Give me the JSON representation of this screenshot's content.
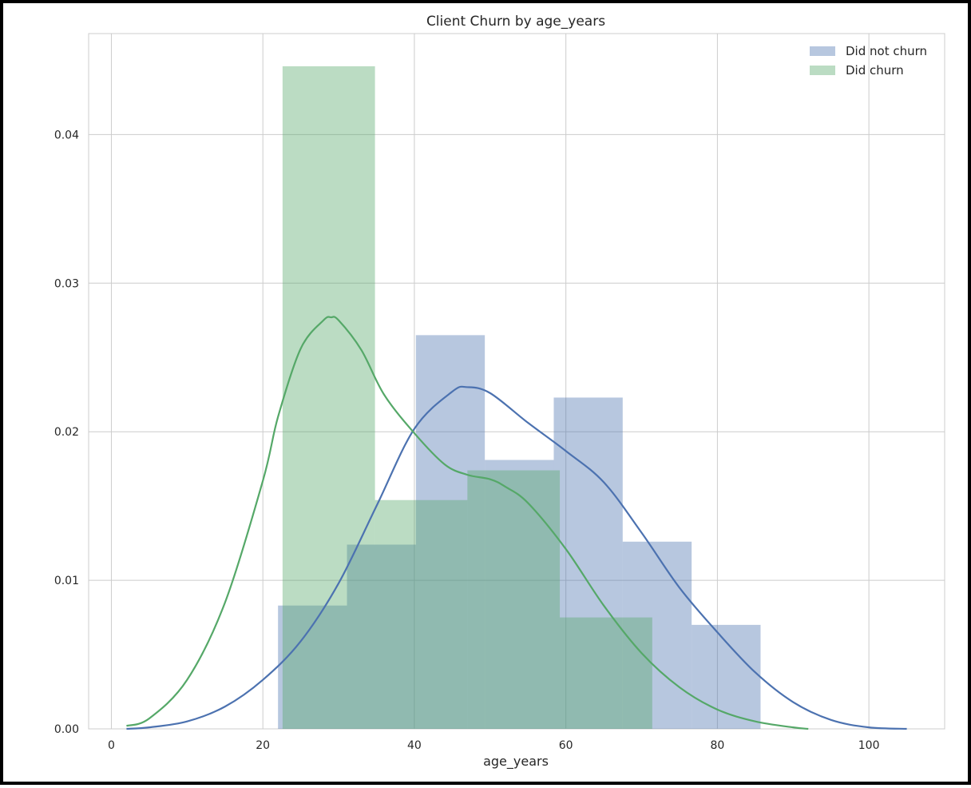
{
  "chart_data": {
    "type": "histogram",
    "title": "Client Churn by age_years",
    "xlabel": "age_years",
    "ylabel": "",
    "xlim": [
      -3,
      110
    ],
    "ylim": [
      0,
      0.0468
    ],
    "xticks": [
      0,
      20,
      40,
      60,
      80,
      100
    ],
    "yticks": [
      0.0,
      0.01,
      0.02,
      0.03,
      0.04
    ],
    "ytick_labels": [
      "0.00",
      "0.01",
      "0.02",
      "0.03",
      "0.04"
    ],
    "grid": true,
    "legend": {
      "placement": "top-right"
    },
    "series": [
      {
        "name": "Did not churn",
        "color": "#4c72b0",
        "hist": {
          "bin_edges": [
            22.0,
            31.1,
            40.2,
            49.3,
            58.4,
            67.5,
            76.6,
            85.7
          ],
          "density": [
            0.0083,
            0.0124,
            0.0265,
            0.0181,
            0.0223,
            0.0126,
            0.007
          ]
        },
        "kde": {
          "x": [
            2,
            5,
            10,
            15,
            20,
            25,
            30,
            35,
            40,
            45,
            47,
            50,
            55,
            60,
            65,
            70,
            75,
            80,
            85,
            90,
            95,
            100,
            105
          ],
          "y": [
            0.0,
            0.0001,
            0.0005,
            0.0015,
            0.0033,
            0.0059,
            0.0098,
            0.015,
            0.0202,
            0.0227,
            0.023,
            0.0226,
            0.0206,
            0.0187,
            0.0166,
            0.0132,
            0.0095,
            0.0065,
            0.0038,
            0.0018,
            0.0006,
            0.0001,
            0.0
          ]
        }
      },
      {
        "name": "Did churn",
        "color": "#55a868",
        "hist": {
          "bin_edges": [
            22.6,
            34.8,
            47.0,
            59.2,
            71.4
          ],
          "density": [
            0.0446,
            0.0154,
            0.0174,
            0.0075
          ]
        },
        "kde": {
          "x": [
            2,
            5,
            10,
            15,
            20,
            22,
            25,
            28,
            29,
            30,
            33,
            36,
            40,
            44,
            47,
            50,
            52,
            55,
            60,
            65,
            70,
            75,
            80,
            85,
            90,
            92
          ],
          "y": [
            0.0002,
            0.0007,
            0.0033,
            0.0085,
            0.0167,
            0.021,
            0.0256,
            0.0275,
            0.0277,
            0.0275,
            0.0255,
            0.0225,
            0.0199,
            0.0178,
            0.0171,
            0.0168,
            0.0163,
            0.0152,
            0.0121,
            0.0083,
            0.0051,
            0.0028,
            0.0013,
            0.0005,
            0.0001,
            0.0
          ]
        }
      }
    ]
  }
}
